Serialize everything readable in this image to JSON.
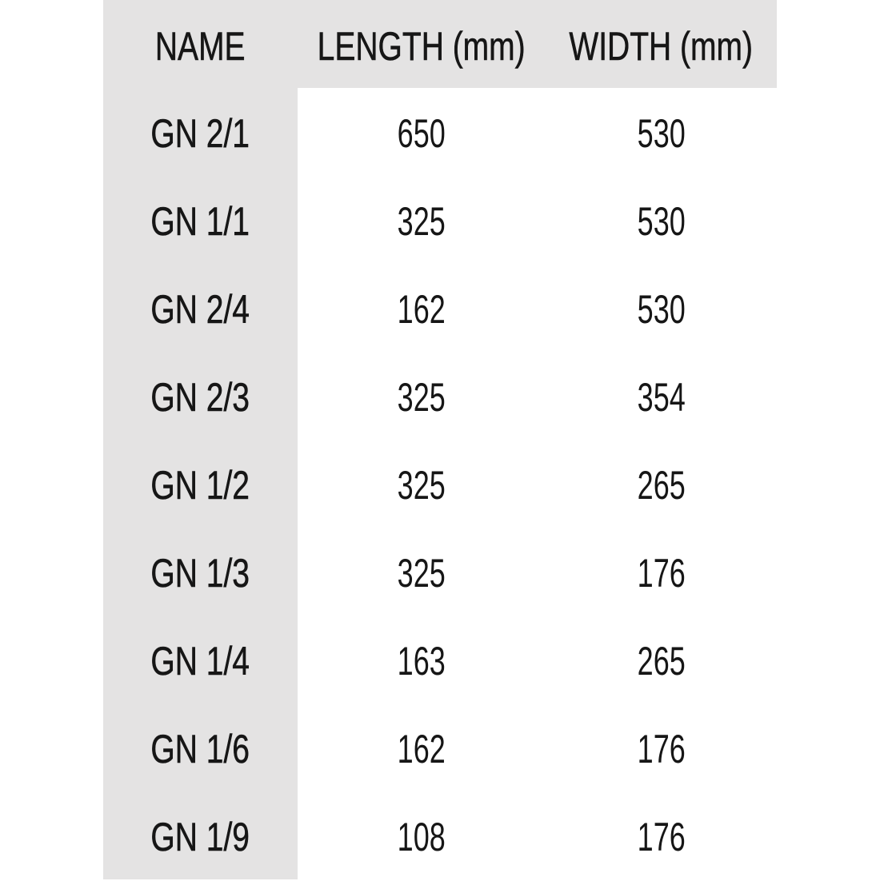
{
  "colors": {
    "header_bg": "#e4e3e3",
    "text": "#161616"
  },
  "table": {
    "headers": [
      "NAME",
      "LENGTH (mm)",
      "WIDTH (mm)"
    ],
    "rows": [
      [
        "GN 2/1",
        "650",
        "530"
      ],
      [
        "GN 1/1",
        "325",
        "530"
      ],
      [
        "GN 2/4",
        "162",
        "530"
      ],
      [
        "GN 2/3",
        "325",
        "354"
      ],
      [
        "GN 1/2",
        "325",
        "265"
      ],
      [
        "GN 1/3",
        "325",
        "176"
      ],
      [
        "GN 1/4",
        "163",
        "265"
      ],
      [
        "GN 1/6",
        "162",
        "176"
      ],
      [
        "GN 1/9",
        "108",
        "176"
      ]
    ]
  }
}
